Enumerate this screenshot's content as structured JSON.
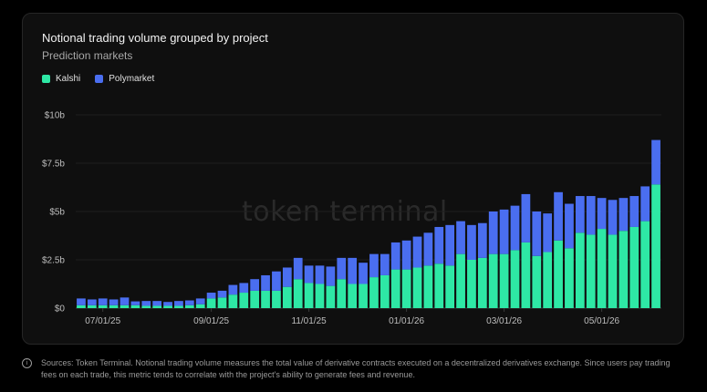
{
  "footer": {
    "info_icon": "info-icon",
    "text": "Sources: Token Terminal. Notional trading volume measures the total value of derivative contracts executed on a decentralized derivatives exchange. Since users pay trading fees on each trade, this metric tends to correlate with the project's ability to generate fees and revenue."
  },
  "watermark": "token terminal",
  "chart_data": {
    "type": "bar",
    "stacked": true,
    "title": "Notional trading volume grouped by project",
    "subtitle": "Prediction markets",
    "legend_position": "top-left",
    "grid": true,
    "ylim": [
      0,
      10
    ],
    "y_ticks": [
      0,
      2.5,
      5,
      7.5,
      10
    ],
    "y_tick_labels": [
      "$0",
      "$2.5b",
      "$5b",
      "$7.5b",
      "$10b"
    ],
    "x_tick_labels": [
      {
        "label": "07/01/25",
        "index": 2
      },
      {
        "label": "09/01/25",
        "index": 12
      },
      {
        "label": "11/01/25",
        "index": 21
      },
      {
        "label": "01/01/26",
        "index": 30
      },
      {
        "label": "03/01/26",
        "index": 39
      },
      {
        "label": "05/01/26",
        "index": 48
      }
    ],
    "series": [
      {
        "name": "Kalshi",
        "color": "#2ee8a5",
        "values": [
          0.15,
          0.15,
          0.15,
          0.15,
          0.15,
          0.15,
          0.12,
          0.12,
          0.12,
          0.12,
          0.15,
          0.2,
          0.5,
          0.55,
          0.7,
          0.8,
          0.9,
          0.9,
          0.9,
          1.1,
          1.5,
          1.3,
          1.25,
          1.15,
          1.5,
          1.25,
          1.25,
          1.6,
          1.7,
          2.0,
          2.0,
          2.1,
          2.2,
          2.3,
          2.2,
          2.8,
          2.5,
          2.6,
          2.8,
          2.8,
          3.0,
          3.4,
          2.7,
          2.9,
          3.5,
          3.1,
          3.9,
          3.8,
          4.1,
          3.8,
          4.0,
          4.2,
          4.5,
          6.4
        ]
      },
      {
        "name": "Polymarket",
        "color": "#4a6ef0",
        "values": [
          0.35,
          0.3,
          0.35,
          0.3,
          0.4,
          0.2,
          0.25,
          0.25,
          0.2,
          0.25,
          0.25,
          0.3,
          0.3,
          0.35,
          0.5,
          0.5,
          0.6,
          0.8,
          1.0,
          1.0,
          1.1,
          0.9,
          0.95,
          1.0,
          1.1,
          1.35,
          1.1,
          1.2,
          1.1,
          1.4,
          1.5,
          1.6,
          1.7,
          1.9,
          2.1,
          1.7,
          1.8,
          1.8,
          2.2,
          2.3,
          2.3,
          2.5,
          2.3,
          2.0,
          2.5,
          2.3,
          1.9,
          2.0,
          1.6,
          1.8,
          1.7,
          1.6,
          1.8,
          2.3
        ]
      }
    ]
  }
}
